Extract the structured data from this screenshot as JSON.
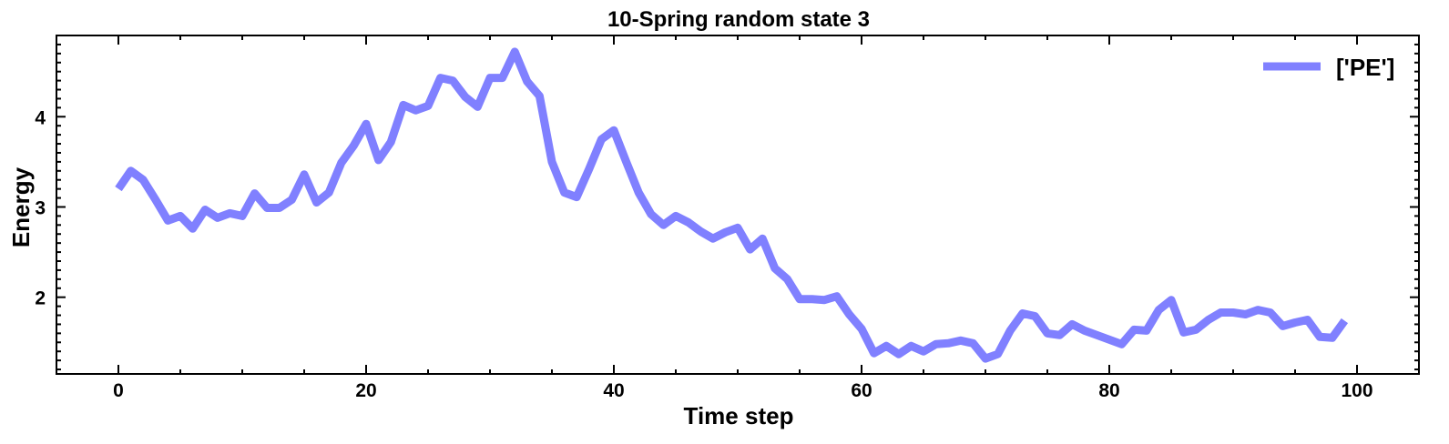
{
  "chart_data": {
    "type": "line",
    "title": "10-Spring random state 3",
    "xlabel": "Time step",
    "ylabel": "Energy",
    "xlim": [
      -5,
      105
    ],
    "ylim": [
      1.15,
      4.9
    ],
    "x_ticks": [
      0,
      20,
      40,
      60,
      80,
      100
    ],
    "y_ticks": [
      2,
      3,
      4
    ],
    "grid": false,
    "legend_position": "top-right",
    "series": [
      {
        "name": "['PE']",
        "color": "#8080ff",
        "x": [
          0,
          1,
          2,
          3,
          4,
          5,
          6,
          7,
          8,
          9,
          10,
          11,
          12,
          13,
          14,
          15,
          16,
          17,
          18,
          19,
          20,
          21,
          22,
          23,
          24,
          25,
          26,
          27,
          28,
          29,
          30,
          31,
          32,
          33,
          34,
          35,
          36,
          37,
          38,
          39,
          40,
          41,
          42,
          43,
          44,
          45,
          46,
          47,
          48,
          49,
          50,
          51,
          52,
          53,
          54,
          55,
          56,
          57,
          58,
          59,
          60,
          61,
          62,
          63,
          64,
          65,
          66,
          67,
          68,
          69,
          70,
          71,
          72,
          73,
          74,
          75,
          76,
          77,
          78,
          79,
          80,
          81,
          82,
          83,
          84,
          85,
          86,
          87,
          88,
          89,
          90,
          91,
          92,
          93,
          94,
          95,
          96,
          97,
          98,
          99
        ],
        "values": [
          3.2,
          3.4,
          3.3,
          3.08,
          2.85,
          2.9,
          2.76,
          2.97,
          2.88,
          2.93,
          2.9,
          3.15,
          2.99,
          2.99,
          3.08,
          3.36,
          3.05,
          3.16,
          3.49,
          3.68,
          3.92,
          3.52,
          3.72,
          4.13,
          4.07,
          4.12,
          4.43,
          4.4,
          4.22,
          4.11,
          4.43,
          4.43,
          4.72,
          4.39,
          4.23,
          3.5,
          3.16,
          3.11,
          3.42,
          3.75,
          3.85,
          3.5,
          3.16,
          2.92,
          2.8,
          2.9,
          2.83,
          2.73,
          2.65,
          2.72,
          2.77,
          2.53,
          2.65,
          2.32,
          2.2,
          1.98,
          1.98,
          1.97,
          2.01,
          1.81,
          1.65,
          1.38,
          1.46,
          1.37,
          1.46,
          1.4,
          1.48,
          1.49,
          1.52,
          1.49,
          1.32,
          1.37,
          1.63,
          1.82,
          1.79,
          1.6,
          1.58,
          1.7,
          1.63,
          1.58,
          1.53,
          1.48,
          1.64,
          1.63,
          1.86,
          1.97,
          1.61,
          1.64,
          1.75,
          1.83,
          1.83,
          1.81,
          1.86,
          1.83,
          1.68,
          1.72,
          1.75,
          1.56,
          1.55,
          1.74
        ]
      }
    ]
  }
}
